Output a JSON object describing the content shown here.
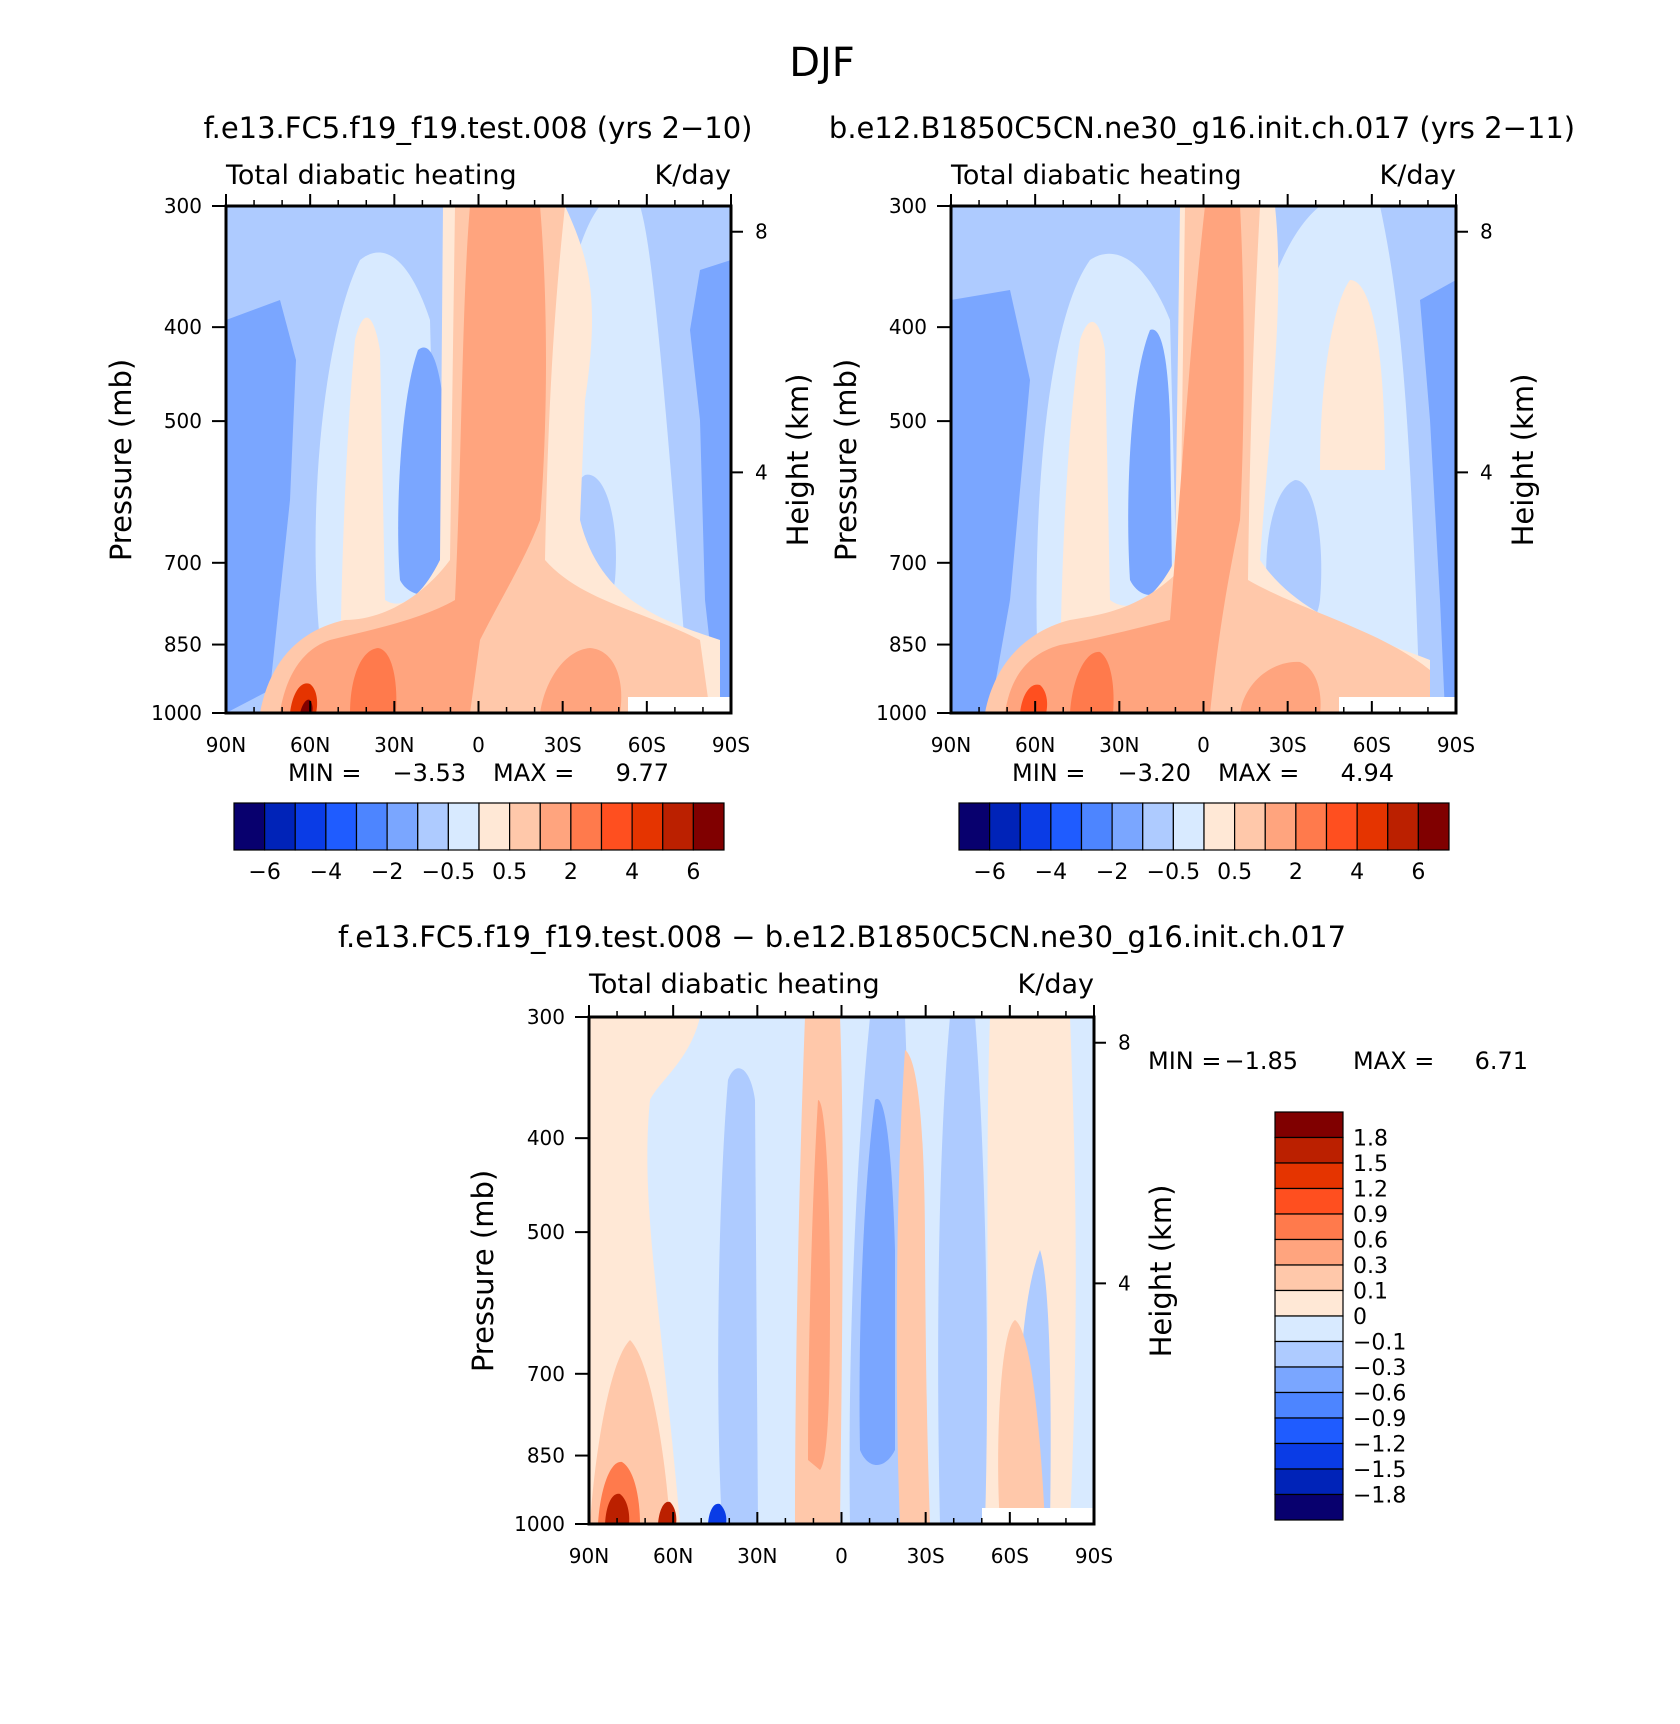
{
  "figure_title": "DJF",
  "contour_colors": {
    "abs": [
      "#08006e",
      "#0023b8",
      "#0a3ce6",
      "#1f5cff",
      "#4d85ff",
      "#7aa6ff",
      "#aecbff",
      "#d8eaff",
      "#ffe8d6",
      "#ffc8aa",
      "#ffa47e",
      "#ff7a4c",
      "#ff4f1f",
      "#e53400",
      "#bb2000",
      "#800000"
    ],
    "diff": [
      "#08006e",
      "#0023b8",
      "#0a3ce6",
      "#1f5cff",
      "#4d85ff",
      "#7aa6ff",
      "#aecbff",
      "#d8eaff",
      "#ffe8d6",
      "#ffc8aa",
      "#ffa47e",
      "#ff7a4c",
      "#ff4f1f",
      "#e53400",
      "#bb2000",
      "#800000"
    ]
  },
  "chart_data": [
    {
      "type": "heatmap",
      "case_title": "f.e13.FC5.f19_f19.test.008 (yrs 2−10)",
      "left_label": "Total diabatic heating",
      "right_label": "K/day",
      "ylabel": "Pressure (mb)",
      "ylabel_right": "Height (km)",
      "x_ticks": [
        "90N",
        "60N",
        "30N",
        "0",
        "30S",
        "60S",
        "90S"
      ],
      "y_ticks": [
        "300",
        "400",
        "500",
        "700",
        "850",
        "1000"
      ],
      "y_values": [
        300,
        400,
        500,
        700,
        850,
        1000
      ],
      "height_ticks": [
        "8",
        "4"
      ],
      "min_label": "MIN =",
      "min_value": "−3.53",
      "max_label": "MAX =",
      "max_value": "9.77",
      "colorbar_levels": [
        -6,
        -5,
        -4,
        -3,
        -2,
        -1,
        -0.5,
        0,
        0.5,
        1,
        2,
        3,
        4,
        5,
        6
      ],
      "colorbar_labels": [
        "−6",
        "−4",
        "−2",
        "−0.5",
        "0.5",
        "2",
        "4",
        "6"
      ]
    },
    {
      "type": "heatmap",
      "case_title": "b.e12.B1850C5CN.ne30_g16.init.ch.017 (yrs 2−11)",
      "left_label": "Total diabatic heating",
      "right_label": "K/day",
      "ylabel": "Pressure (mb)",
      "ylabel_right": "Height (km)",
      "x_ticks": [
        "90N",
        "60N",
        "30N",
        "0",
        "30S",
        "60S",
        "90S"
      ],
      "y_ticks": [
        "300",
        "400",
        "500",
        "700",
        "850",
        "1000"
      ],
      "y_values": [
        300,
        400,
        500,
        700,
        850,
        1000
      ],
      "height_ticks": [
        "8",
        "4"
      ],
      "min_label": "MIN =",
      "min_value": "−3.20",
      "max_label": "MAX =",
      "max_value": "4.94",
      "colorbar_levels": [
        -6,
        -5,
        -4,
        -3,
        -2,
        -1,
        -0.5,
        0,
        0.5,
        1,
        2,
        3,
        4,
        5,
        6
      ],
      "colorbar_labels": [
        "−6",
        "−4",
        "−2",
        "−0.5",
        "0.5",
        "2",
        "4",
        "6"
      ]
    },
    {
      "type": "heatmap",
      "case_title": "f.e13.FC5.f19_f19.test.008 − b.e12.B1850C5CN.ne30_g16.init.ch.017",
      "left_label": "Total diabatic heating",
      "right_label": "K/day",
      "ylabel": "Pressure (mb)",
      "ylabel_right": "Height (km)",
      "x_ticks": [
        "90N",
        "60N",
        "30N",
        "0",
        "30S",
        "60S",
        "90S"
      ],
      "y_ticks": [
        "300",
        "400",
        "500",
        "700",
        "850",
        "1000"
      ],
      "y_values": [
        300,
        400,
        500,
        700,
        850,
        1000
      ],
      "height_ticks": [
        "8",
        "4"
      ],
      "min_label": "MIN =",
      "min_value": "−1.85",
      "max_label": "MAX =",
      "max_value": "6.71",
      "colorbar_levels": [
        -1.8,
        -1.5,
        -1.2,
        -0.9,
        -0.6,
        -0.3,
        -0.1,
        0,
        0.1,
        0.3,
        0.6,
        0.9,
        1.2,
        1.5,
        1.8
      ],
      "colorbar_labels": [
        "1.8",
        "1.5",
        "1.2",
        "0.9",
        "0.6",
        "0.3",
        "0.1",
        "0",
        "−0.1",
        "−0.3",
        "−0.6",
        "−0.9",
        "−1.2",
        "−1.5",
        "−1.8"
      ]
    }
  ]
}
